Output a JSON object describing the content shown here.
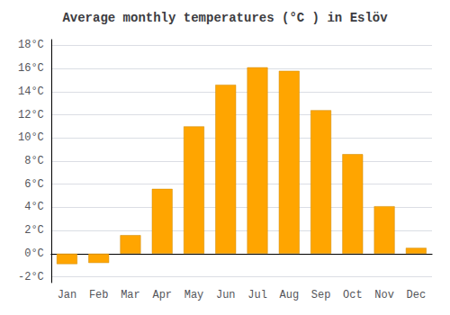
{
  "chart_data": {
    "type": "bar",
    "title": "Average monthly temperatures (°C ) in Eslöv",
    "categories": [
      "Jan",
      "Feb",
      "Mar",
      "Apr",
      "May",
      "Jun",
      "Jul",
      "Aug",
      "Sep",
      "Oct",
      "Nov",
      "Dec"
    ],
    "values": [
      -0.9,
      -0.8,
      1.6,
      5.6,
      11.0,
      14.6,
      16.1,
      15.8,
      12.4,
      8.6,
      4.1,
      0.5
    ],
    "color": "#FFA500",
    "ylim": [
      -2.5,
      18.5
    ],
    "yticks": [
      {
        "value": -2,
        "label": "-2°C"
      },
      {
        "value": 0,
        "label": "0°C"
      },
      {
        "value": 2,
        "label": "2°C"
      },
      {
        "value": 4,
        "label": "4°C"
      },
      {
        "value": 6,
        "label": "6°C"
      },
      {
        "value": 8,
        "label": "8°C"
      },
      {
        "value": 10,
        "label": "10°C"
      },
      {
        "value": 12,
        "label": "12°C"
      },
      {
        "value": 14,
        "label": "14°C"
      },
      {
        "value": 16,
        "label": "16°C"
      },
      {
        "value": 18,
        "label": "18°C"
      }
    ],
    "grid": true
  }
}
